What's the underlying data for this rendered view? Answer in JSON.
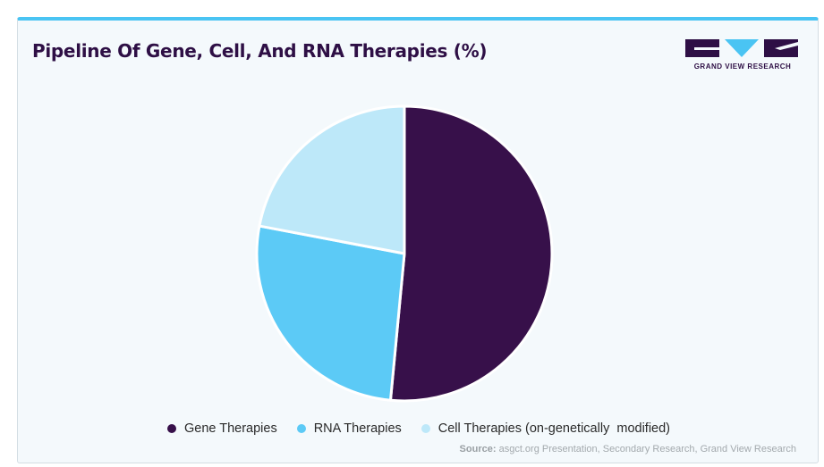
{
  "title": "Pipeline Of Gene, Cell, And RNA Therapies (%)",
  "logo": {
    "brand": "GRAND VIEW RESEARCH",
    "colors": {
      "dark": "#2e0f45",
      "accent": "#4ac4f3"
    }
  },
  "chart_data": {
    "type": "pie",
    "title": "Pipeline Of Gene, Cell, And RNA Therapies (%)",
    "start_angle_deg": 0,
    "direction": "clockwise",
    "slices": [
      {
        "label": "Gene Therapies",
        "value": 51.5,
        "color": "#37104a"
      },
      {
        "label": "RNA Therapies",
        "value": 26.5,
        "color": "#5ccaf6"
      },
      {
        "label": "Cell Therapies (on-genetically  modified)",
        "value": 22.0,
        "color": "#bde8f9"
      }
    ],
    "legend_position": "bottom"
  },
  "source": {
    "label": "Source:",
    "text": "asgct.org Presentation, Secondary Research, Grand View Research"
  }
}
